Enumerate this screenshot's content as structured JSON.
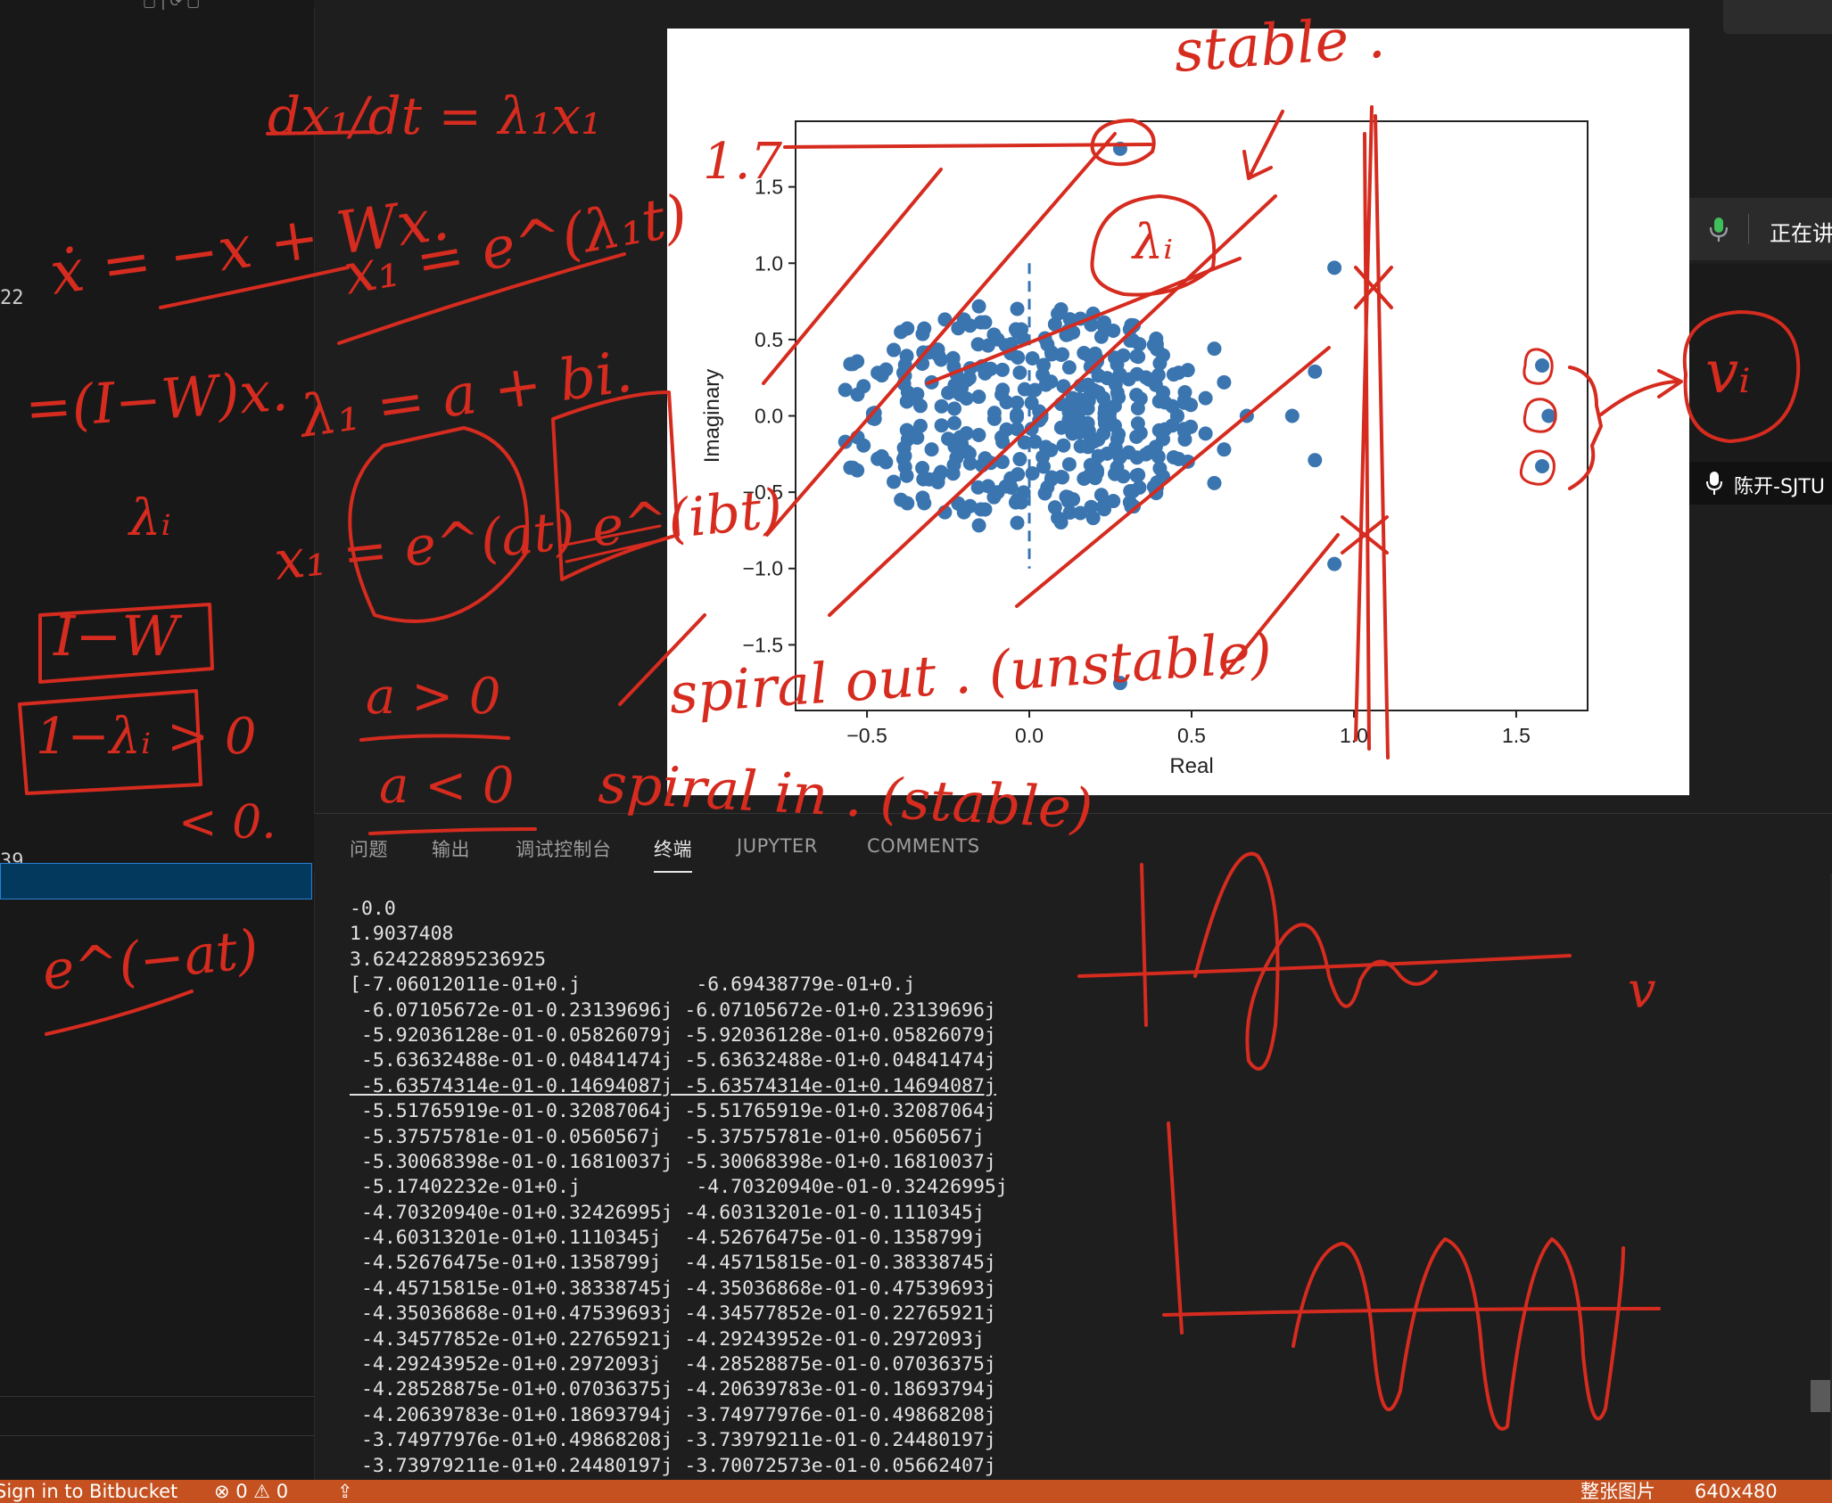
{
  "left_sidebar": {
    "line_number_1": "22",
    "line_number_2": "39"
  },
  "scatter_chart": {
    "chart_data": {
      "type": "scatter",
      "xlabel": "Real",
      "ylabel": "Imaginary",
      "xlim": [
        -0.72,
        1.72
      ],
      "ylim": [
        -1.93,
        1.93
      ],
      "x_ticks": [
        "−0.5",
        "0.0",
        "0.5",
        "1.0",
        "1.5"
      ],
      "y_ticks": [
        "−1.5",
        "−1.0",
        "−0.5",
        "0.0",
        "0.5",
        "1.0",
        "1.5"
      ],
      "grid": false,
      "point_color": "#3a75b0",
      "reference_line": {
        "x": 0.0,
        "y_from": -1.0,
        "y_to": 1.0,
        "style": "dashed"
      },
      "outliers": [
        {
          "x": 0.28,
          "y": 1.75
        },
        {
          "x": 0.28,
          "y": -1.75
        },
        {
          "x": 0.94,
          "y": 0.97
        },
        {
          "x": 0.94,
          "y": -0.97
        },
        {
          "x": 1.58,
          "y": 0.33
        },
        {
          "x": 1.6,
          "y": 0.0
        },
        {
          "x": 1.58,
          "y": -0.33
        },
        {
          "x": 0.88,
          "y": 0.29
        },
        {
          "x": 0.88,
          "y": -0.29
        },
        {
          "x": 0.81,
          "y": 0.0
        },
        {
          "x": 0.67,
          "y": 0.0
        },
        {
          "x": 0.6,
          "y": 0.22
        },
        {
          "x": 0.6,
          "y": -0.22
        },
        {
          "x": 0.57,
          "y": 0.44
        },
        {
          "x": 0.57,
          "y": -0.44
        }
      ],
      "cloud": {
        "count": 380,
        "x_range": [
          -0.62,
          0.55
        ],
        "y_range": [
          -0.75,
          0.75
        ]
      }
    }
  },
  "panel": {
    "tabs": [
      "问题",
      "输出",
      "调试控制台",
      "终端",
      "JUPYTER",
      "COMMENTS"
    ],
    "active_tab": "终端"
  },
  "terminal": {
    "lines": [
      "-0.0",
      "1.9037408",
      "3.624228895236925",
      "[-7.06012011e-01+0.j          -6.69438779e-01+0.j",
      " -6.07105672e-01-0.23139696j -6.07105672e-01+0.23139696j",
      " -5.92036128e-01-0.05826079j -5.92036128e-01+0.05826079j",
      " -5.63632488e-01-0.04841474j -5.63632488e-01+0.04841474j",
      " -5.63574314e-01-0.14694087j -5.63574314e-01+0.14694087j",
      " -5.51765919e-01-0.32087064j -5.51765919e-01+0.32087064j",
      " -5.37575781e-01-0.0560567j  -5.37575781e-01+0.0560567j",
      " -5.30068398e-01-0.16810037j -5.30068398e-01+0.16810037j",
      " -5.17402232e-01+0.j          -4.70320940e-01-0.32426995j",
      " -4.70320940e-01+0.32426995j -4.60313201e-01-0.1110345j",
      " -4.60313201e-01+0.1110345j  -4.52676475e-01-0.1358799j",
      " -4.52676475e-01+0.1358799j  -4.45715815e-01-0.38338745j",
      " -4.45715815e-01+0.38338745j -4.35036868e-01-0.47539693j",
      " -4.35036868e-01+0.47539693j -4.34577852e-01-0.22765921j",
      " -4.34577852e-01+0.22765921j -4.29243952e-01-0.2972093j",
      " -4.29243952e-01+0.2972093j  -4.28528875e-01-0.07036375j",
      " -4.28528875e-01+0.07036375j -4.20639783e-01-0.18693794j",
      " -4.20639783e-01+0.18693794j -3.74977976e-01-0.49868208j",
      " -3.74977976e-01+0.49868208j -3.73979211e-01-0.24480197j",
      " -3.73979211e-01+0.24480197j -3.70072573e-01-0.05662407j"
    ]
  },
  "meeting": {
    "status_text": "正在讲",
    "speaker_label": "陈开-SJTU"
  },
  "status_bar": {
    "bitbucket": "Sign in to Bitbucket",
    "problems": "⊗ 0 ⚠ 0",
    "image_mode": "整张图片",
    "image_size": "640x480"
  },
  "handwriting": {
    "ink_color": "#d62b1f",
    "texts": [
      "dx₁/dt = λ₁x₁",
      "ẋ = −x + Wx.",
      "x₁ = e^(λ₁t)",
      "=(I−W)x.",
      "λ₁ = a + bi.",
      "λᵢ",
      "x₁ = e^(at) e^(ibt)",
      "I−W",
      "1−λᵢ > 0",
      "< 0.",
      "a > 0",
      "a < 0",
      "e^(−at)",
      "stable .",
      "λᵢ",
      "spiral out . (unstable)",
      "spiral in . (stable)",
      "vᵢ",
      "v",
      "1.7"
    ]
  }
}
